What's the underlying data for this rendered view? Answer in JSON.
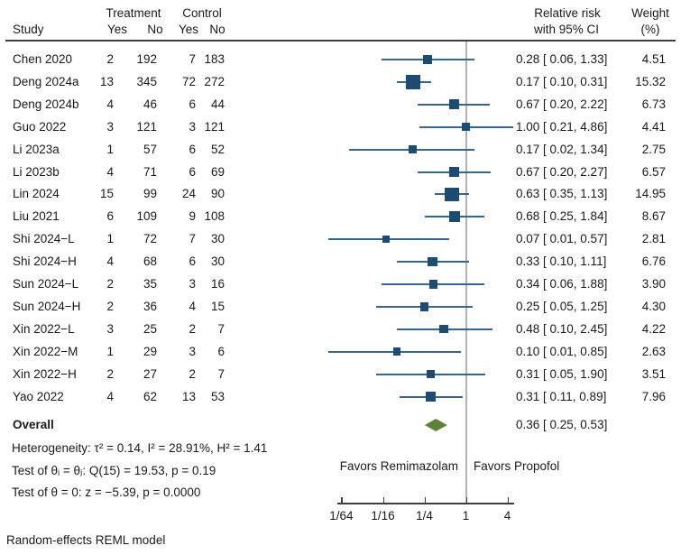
{
  "header": {
    "study": "Study",
    "treatment": "Treatment",
    "control": "Control",
    "t_yes": "Yes",
    "t_no": "No",
    "c_yes": "Yes",
    "c_no": "No",
    "rr_line1": "Relative risk",
    "rr_line2": "with 95% CI",
    "weight_line1": "Weight",
    "weight_line2": "(%)"
  },
  "chart_data": {
    "type": "forest",
    "x_scale": "log",
    "reference_value": 1,
    "axis_ticks": [
      {
        "label": "1/64",
        "value": 0.015625
      },
      {
        "label": "1/16",
        "value": 0.0625
      },
      {
        "label": "1/4",
        "value": 0.25
      },
      {
        "label": "1",
        "value": 1
      },
      {
        "label": "4",
        "value": 4
      }
    ],
    "favors_left": "Favors Remimazolam",
    "favors_right": "Favors Propofol",
    "studies": [
      {
        "label": "Chen 2020",
        "t_yes": "2",
        "t_no": "192",
        "c_yes": "7",
        "c_no": "183",
        "rr": 0.28,
        "lo": 0.06,
        "hi": 1.33,
        "rr_text": "0.28 [ 0.06, 1.33]",
        "weight": 4.51,
        "weight_text": "4.51"
      },
      {
        "label": "Deng 2024a",
        "t_yes": "13",
        "t_no": "345",
        "c_yes": "72",
        "c_no": "272",
        "rr": 0.17,
        "lo": 0.1,
        "hi": 0.31,
        "rr_text": "0.17 [ 0.10, 0.31]",
        "weight": 15.32,
        "weight_text": "15.32"
      },
      {
        "label": "Deng 2024b",
        "t_yes": "4",
        "t_no": "46",
        "c_yes": "6",
        "c_no": "44",
        "rr": 0.67,
        "lo": 0.2,
        "hi": 2.22,
        "rr_text": "0.67 [ 0.20, 2.22]",
        "weight": 6.73,
        "weight_text": "6.73"
      },
      {
        "label": "Guo 2022",
        "t_yes": "3",
        "t_no": "121",
        "c_yes": "3",
        "c_no": "121",
        "rr": 1.0,
        "lo": 0.21,
        "hi": 4.86,
        "rr_text": "1.00 [ 0.21, 4.86]",
        "weight": 4.41,
        "weight_text": "4.41"
      },
      {
        "label": "Li 2023a",
        "t_yes": "1",
        "t_no": "57",
        "c_yes": "6",
        "c_no": "52",
        "rr": 0.17,
        "lo": 0.02,
        "hi": 1.34,
        "rr_text": "0.17 [ 0.02, 1.34]",
        "weight": 2.75,
        "weight_text": "2.75"
      },
      {
        "label": "Li 2023b",
        "t_yes": "4",
        "t_no": "71",
        "c_yes": "6",
        "c_no": "69",
        "rr": 0.67,
        "lo": 0.2,
        "hi": 2.27,
        "rr_text": "0.67 [ 0.20, 2.27]",
        "weight": 6.57,
        "weight_text": "6.57"
      },
      {
        "label": "Lin 2024",
        "t_yes": "15",
        "t_no": "99",
        "c_yes": "24",
        "c_no": "90",
        "rr": 0.63,
        "lo": 0.35,
        "hi": 1.13,
        "rr_text": "0.63 [ 0.35, 1.13]",
        "weight": 14.95,
        "weight_text": "14.95"
      },
      {
        "label": "Liu 2021",
        "t_yes": "6",
        "t_no": "109",
        "c_yes": "9",
        "c_no": "108",
        "rr": 0.68,
        "lo": 0.25,
        "hi": 1.84,
        "rr_text": "0.68 [ 0.25, 1.84]",
        "weight": 8.67,
        "weight_text": "8.67"
      },
      {
        "label": "Shi 2024−L",
        "t_yes": "1",
        "t_no": "72",
        "c_yes": "7",
        "c_no": "30",
        "rr": 0.07,
        "lo": 0.01,
        "hi": 0.57,
        "rr_text": "0.07 [ 0.01, 0.57]",
        "weight": 2.81,
        "weight_text": "2.81"
      },
      {
        "label": "Shi 2024−H",
        "t_yes": "4",
        "t_no": "68",
        "c_yes": "6",
        "c_no": "30",
        "rr": 0.33,
        "lo": 0.1,
        "hi": 1.11,
        "rr_text": "0.33 [ 0.10, 1.11]",
        "weight": 6.76,
        "weight_text": "6.76"
      },
      {
        "label": "Sun 2024−L",
        "t_yes": "2",
        "t_no": "35",
        "c_yes": "3",
        "c_no": "16",
        "rr": 0.34,
        "lo": 0.06,
        "hi": 1.88,
        "rr_text": "0.34 [ 0.06, 1.88]",
        "weight": 3.9,
        "weight_text": "3.90"
      },
      {
        "label": "Sun 2024−H",
        "t_yes": "2",
        "t_no": "36",
        "c_yes": "4",
        "c_no": "15",
        "rr": 0.25,
        "lo": 0.05,
        "hi": 1.25,
        "rr_text": "0.25 [ 0.05, 1.25]",
        "weight": 4.3,
        "weight_text": "4.30"
      },
      {
        "label": "Xin 2022−L",
        "t_yes": "3",
        "t_no": "25",
        "c_yes": "2",
        "c_no": "7",
        "rr": 0.48,
        "lo": 0.1,
        "hi": 2.45,
        "rr_text": "0.48 [ 0.10, 2.45]",
        "weight": 4.22,
        "weight_text": "4.22"
      },
      {
        "label": "Xin 2022−M",
        "t_yes": "1",
        "t_no": "29",
        "c_yes": "3",
        "c_no": "6",
        "rr": 0.1,
        "lo": 0.01,
        "hi": 0.85,
        "rr_text": "0.10 [ 0.01, 0.85]",
        "weight": 2.63,
        "weight_text": "2.63"
      },
      {
        "label": "Xin 2022−H",
        "t_yes": "2",
        "t_no": "27",
        "c_yes": "2",
        "c_no": "7",
        "rr": 0.31,
        "lo": 0.05,
        "hi": 1.9,
        "rr_text": "0.31 [ 0.05, 1.90]",
        "weight": 3.51,
        "weight_text": "3.51"
      },
      {
        "label": "Yao 2022",
        "t_yes": "4",
        "t_no": "62",
        "c_yes": "13",
        "c_no": "53",
        "rr": 0.31,
        "lo": 0.11,
        "hi": 0.89,
        "rr_text": "0.31 [ 0.11, 0.89]",
        "weight": 7.96,
        "weight_text": "7.96"
      }
    ],
    "overall": {
      "label": "Overall",
      "rr": 0.36,
      "lo": 0.25,
      "hi": 0.53,
      "rr_text": "0.36 [ 0.25, 0.53]"
    }
  },
  "footer": {
    "heterogeneity": "Heterogeneity: τ² = 0.14, I² = 28.91%, H² = 1.41",
    "test_q": "Test of θᵢ = θⱼ: Q(15) = 19.53, p = 0.19",
    "test_z": "Test of θ = 0: z = −5.39, p = 0.0000",
    "model": "Random-effects REML model"
  },
  "colors": {
    "marker": "#1e4b72",
    "ci_line": "#38658f",
    "diamond": "#5f8237",
    "reference_line": "#b4b4b4",
    "rule": "#3d3d3d"
  }
}
